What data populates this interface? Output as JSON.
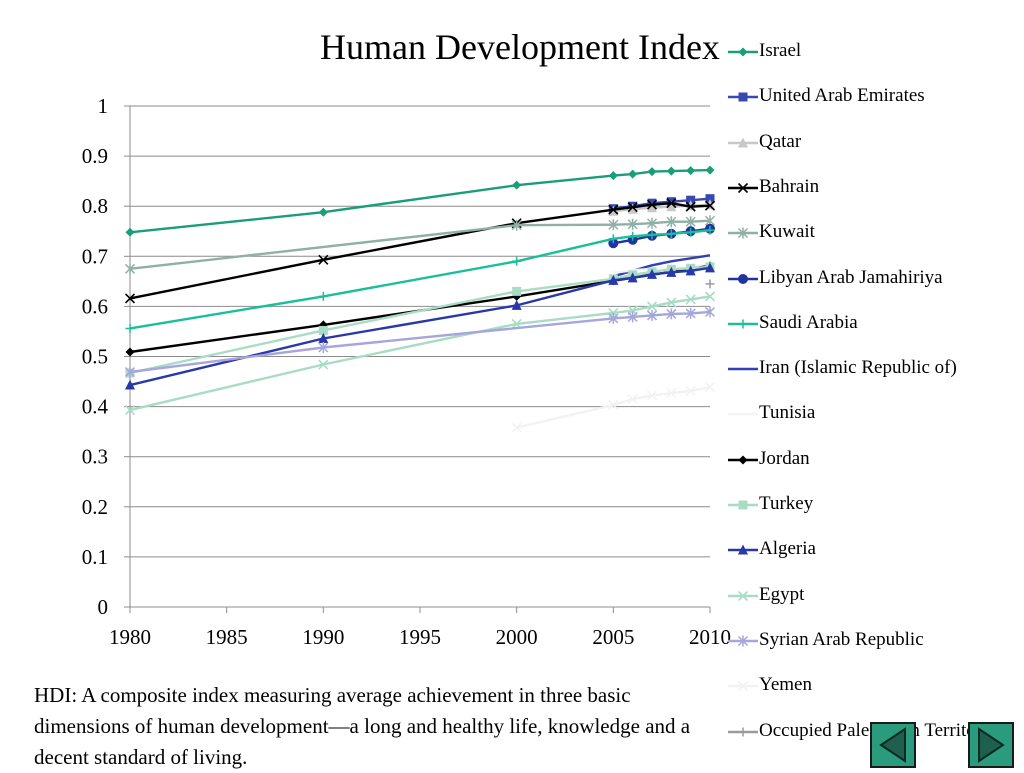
{
  "title": "Human Development Index",
  "description": "HDI: A composite index measuring average achievement in three basic dimensions of human development—a long and healthy life, knowledge and a decent standard of living.",
  "nav": {
    "prev_icon": "left-triangle-icon",
    "next_icon": "right-triangle-icon",
    "button_color": "#2b9b7e"
  },
  "chart_data": {
    "type": "line",
    "title": "Human Development Index",
    "xlabel": "",
    "ylabel": "",
    "xlim": [
      1980,
      2010
    ],
    "ylim": [
      0,
      1
    ],
    "x_ticks": [
      1980,
      1985,
      1990,
      1995,
      2000,
      2005,
      2010
    ],
    "y_ticks": [
      "0",
      "0.1",
      "0.2",
      "0.3",
      "0.4",
      "0.5",
      "0.6",
      "0.7",
      "0.8",
      "0.9",
      "1"
    ],
    "grid": true,
    "legend_position": "right",
    "series": [
      {
        "name": "Israel",
        "color": "#1a9e7a",
        "marker": "diamond",
        "x": [
          1980,
          1990,
          2000,
          2005,
          2006,
          2007,
          2008,
          2009,
          2010
        ],
        "y": [
          0.748,
          0.788,
          0.842,
          0.861,
          0.864,
          0.869,
          0.87,
          0.871,
          0.872
        ]
      },
      {
        "name": "United Arab Emirates",
        "color": "#3848b0",
        "marker": "square",
        "x": [
          2005,
          2006,
          2007,
          2008,
          2009,
          2010
        ],
        "y": [
          0.795,
          0.8,
          0.806,
          0.809,
          0.812,
          0.815
        ]
      },
      {
        "name": "Qatar",
        "color": "#c8c8c8",
        "marker": "triangle",
        "x": [
          2005,
          2006,
          2007,
          2008,
          2009,
          2010
        ],
        "y": [
          0.79,
          0.794,
          0.797,
          0.799,
          0.801,
          0.803
        ]
      },
      {
        "name": "Bahrain",
        "color": "#000000",
        "marker": "x",
        "x": [
          1980,
          1990,
          2000,
          2005,
          2006,
          2007,
          2008,
          2009,
          2010
        ],
        "y": [
          0.616,
          0.693,
          0.766,
          0.793,
          0.798,
          0.803,
          0.806,
          0.799,
          0.801
        ]
      },
      {
        "name": "Kuwait",
        "color": "#8fb0a6",
        "marker": "star",
        "x": [
          1980,
          2000,
          2005,
          2006,
          2007,
          2008,
          2009,
          2010
        ],
        "y": [
          0.675,
          0.762,
          0.763,
          0.764,
          0.766,
          0.769,
          0.769,
          0.771
        ]
      },
      {
        "name": "Libyan Arab Jamahiriya",
        "color": "#2233a0",
        "marker": "circle",
        "x": [
          2005,
          2006,
          2007,
          2008,
          2009,
          2010
        ],
        "y": [
          0.726,
          0.733,
          0.741,
          0.745,
          0.75,
          0.755
        ]
      },
      {
        "name": "Saudi Arabia",
        "color": "#1abf99",
        "marker": "plus",
        "x": [
          1980,
          1990,
          2000,
          2005,
          2006,
          2007,
          2008,
          2009,
          2010
        ],
        "y": [
          0.556,
          0.62,
          0.69,
          0.735,
          0.74,
          0.743,
          0.745,
          0.748,
          0.752
        ]
      },
      {
        "name": "Iran (Islamic Republic of)",
        "color": "#3040b8",
        "marker": "none",
        "x": [
          2005,
          2006,
          2007,
          2008,
          2009,
          2010
        ],
        "y": [
          0.66,
          0.671,
          0.682,
          0.69,
          0.696,
          0.702
        ]
      },
      {
        "name": "Tunisia",
        "color": "#f4f4f4",
        "marker": "none",
        "x": [
          2005,
          2006,
          2007,
          2008,
          2009,
          2010
        ],
        "y": [
          0.667,
          0.672,
          0.675,
          0.677,
          0.68,
          0.683
        ]
      },
      {
        "name": "Jordan",
        "color": "#000000",
        "marker": "diamond",
        "x": [
          1980,
          1990,
          2000,
          2005,
          2010
        ],
        "y": [
          0.509,
          0.563,
          0.62,
          0.651,
          0.681
        ]
      },
      {
        "name": "Turkey",
        "color": "#a8dcc4",
        "marker": "square",
        "x": [
          1980,
          1990,
          2000,
          2005,
          2006,
          2007,
          2008,
          2009,
          2010
        ],
        "y": [
          0.467,
          0.552,
          0.63,
          0.655,
          0.663,
          0.669,
          0.674,
          0.676,
          0.679
        ]
      },
      {
        "name": "Algeria",
        "color": "#2838a8",
        "marker": "triangle",
        "x": [
          1980,
          1990,
          2000,
          2005,
          2006,
          2007,
          2008,
          2009,
          2010
        ],
        "y": [
          0.443,
          0.536,
          0.602,
          0.652,
          0.657,
          0.664,
          0.668,
          0.671,
          0.677
        ]
      },
      {
        "name": "Egypt",
        "color": "#a8dcc4",
        "marker": "x",
        "x": [
          1980,
          1990,
          2000,
          2005,
          2006,
          2007,
          2008,
          2009,
          2010
        ],
        "y": [
          0.393,
          0.484,
          0.565,
          0.587,
          0.592,
          0.6,
          0.608,
          0.614,
          0.62
        ]
      },
      {
        "name": "Syrian Arab Republic",
        "color": "#a6a6dc",
        "marker": "star",
        "x": [
          1980,
          1990,
          2005,
          2006,
          2007,
          2008,
          2009,
          2010
        ],
        "y": [
          0.469,
          0.518,
          0.576,
          0.579,
          0.582,
          0.585,
          0.586,
          0.589
        ]
      },
      {
        "name": "Yemen",
        "color": "#f2f2f2",
        "marker": "x",
        "x": [
          2000,
          2005,
          2006,
          2007,
          2008,
          2009,
          2010
        ],
        "y": [
          0.358,
          0.403,
          0.415,
          0.422,
          0.427,
          0.431,
          0.439
        ]
      },
      {
        "name": "Occupied Palestinian Territory",
        "color": "#9a9a9a",
        "marker": "plus",
        "x": [
          2010
        ],
        "y": [
          0.645
        ]
      }
    ]
  }
}
